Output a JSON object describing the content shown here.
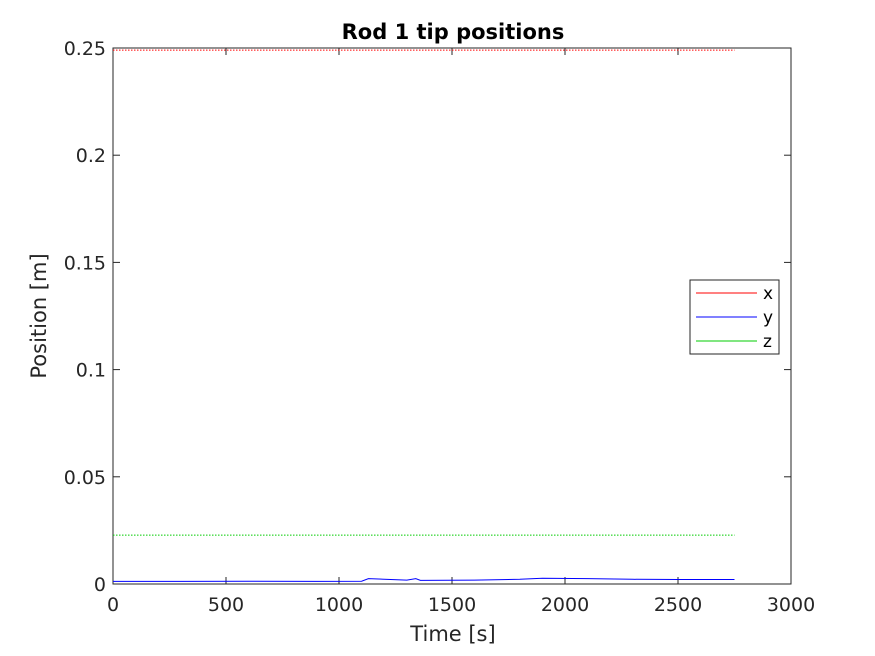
{
  "chart_data": {
    "type": "line",
    "title": "Rod 1 tip positions",
    "xlabel": "Time [s]",
    "ylabel": "Position [m]",
    "xlim": [
      0,
      3000
    ],
    "ylim": [
      0,
      0.25
    ],
    "xticks": [
      0,
      500,
      1000,
      1500,
      2000,
      2500,
      3000
    ],
    "yticks": [
      0,
      0.05,
      0.1,
      0.15,
      0.2,
      0.25
    ],
    "xtick_labels": [
      "0",
      "500",
      "1000",
      "1500",
      "2000",
      "2500",
      "3000"
    ],
    "ytick_labels": [
      "0",
      "0.05",
      "0.1",
      "0.15",
      "0.2",
      "0.25"
    ],
    "grid": false,
    "legend_position": "right",
    "series": [
      {
        "name": "x",
        "color": "#ff0000",
        "style": "dotted",
        "x": [
          0,
          500,
          1000,
          1500,
          2000,
          2500,
          2750
        ],
        "y": [
          0.249,
          0.249,
          0.249,
          0.249,
          0.249,
          0.249,
          0.249
        ]
      },
      {
        "name": "y",
        "color": "#0000ff",
        "style": "solid",
        "x": [
          0,
          300,
          600,
          900,
          1100,
          1130,
          1300,
          1340,
          1360,
          1600,
          1800,
          1900,
          2100,
          2300,
          2500,
          2750
        ],
        "y": [
          0.0012,
          0.0012,
          0.0013,
          0.0012,
          0.0013,
          0.0025,
          0.0018,
          0.0025,
          0.0017,
          0.0018,
          0.0022,
          0.0027,
          0.0025,
          0.0022,
          0.0021,
          0.0021
        ]
      },
      {
        "name": "z",
        "color": "#00cc00",
        "style": "dotted",
        "x": [
          0,
          500,
          1000,
          1500,
          2000,
          2500,
          2750
        ],
        "y": [
          0.0228,
          0.0228,
          0.0228,
          0.0228,
          0.0228,
          0.0228,
          0.0228
        ]
      }
    ]
  }
}
